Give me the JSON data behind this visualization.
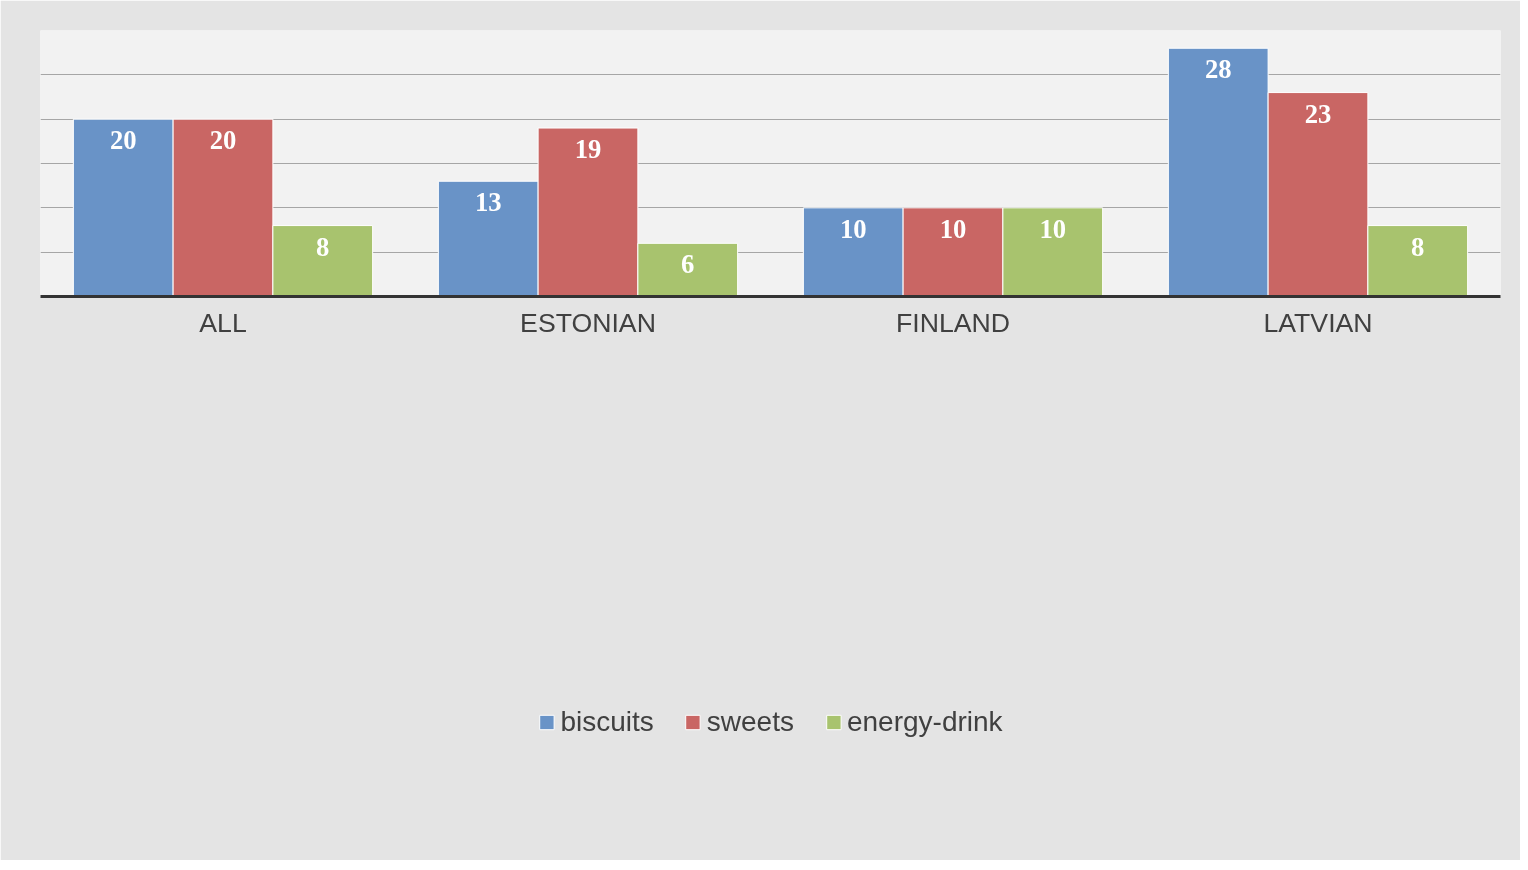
{
  "chart_data": {
    "type": "bar",
    "categories": [
      "ALL",
      "ESTONIAN",
      "FINLAND",
      "LATVIAN"
    ],
    "series": [
      {
        "name": "biscuits",
        "color": "#6993c7",
        "values": [
          20,
          13,
          10,
          28
        ]
      },
      {
        "name": "sweets",
        "color": "#c96664",
        "values": [
          20,
          19,
          10,
          23
        ]
      },
      {
        "name": "energy-drink",
        "color": "#a8c36e",
        "values": [
          8,
          6,
          10,
          8
        ]
      }
    ],
    "ylim": [
      0,
      30
    ],
    "yticks": [
      {
        "value": 0,
        "label": null
      },
      {
        "value": 5,
        "label": null
      },
      {
        "value": 10,
        "label": null
      },
      {
        "value": 15,
        "label": null
      },
      {
        "value": 20,
        "label": null
      },
      {
        "value": 25,
        "label": null
      },
      {
        "value": 30,
        "label": null
      }
    ],
    "tick_labels": "x",
    "grid": "y",
    "legend": "bottom",
    "data_labels": true
  }
}
